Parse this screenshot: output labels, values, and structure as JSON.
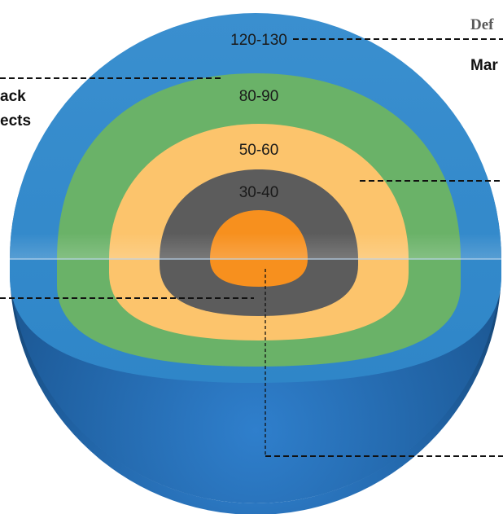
{
  "diagram": {
    "layer_labels": {
      "outer": "120-130",
      "green": "80-90",
      "yellow": "50-60",
      "gray": "30-40"
    },
    "cut_labels": {
      "top_right_serif": "Def",
      "right_bold": "Mar",
      "left_top_line1": "ack",
      "left_top_line2": "ects"
    },
    "colors": {
      "shell_blue": "#2f86c8",
      "green": "#6ab268",
      "yellow": "#fcc46c",
      "gray": "#5c5c5c",
      "core_orange": "#f7901e"
    }
  }
}
